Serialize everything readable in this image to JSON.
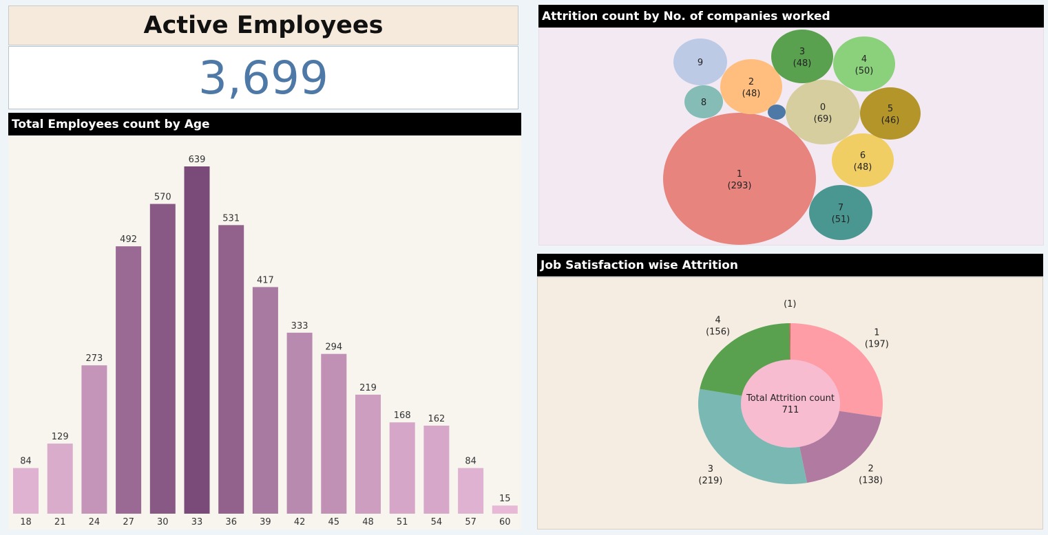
{
  "kpi": {
    "title": "Active Employees",
    "value": "3,699",
    "color": "#4e79a7"
  },
  "panels": {
    "bar_title": "Total Employees count by Age",
    "bubble_title": "Attrition count by No. of companies worked",
    "donut_title": "Job Satisfaction wise Attrition"
  },
  "chart_data": [
    {
      "type": "bar",
      "title": "Total Employees count by Age",
      "categories": [
        "18",
        "21",
        "24",
        "27",
        "30",
        "33",
        "36",
        "39",
        "42",
        "45",
        "48",
        "51",
        "54",
        "57",
        "60"
      ],
      "values": [
        84,
        129,
        273,
        492,
        570,
        639,
        531,
        417,
        333,
        294,
        219,
        168,
        162,
        84,
        15
      ],
      "ylim": [
        0,
        639
      ],
      "data_labels": true,
      "color_low": "#e8bad8",
      "color_high": "#7a4a78"
    },
    {
      "type": "bubble",
      "title": "Attrition count by No. of companies worked",
      "items": [
        {
          "label": "1",
          "value": 293,
          "show_value": true,
          "color": "#e8847e"
        },
        {
          "label": "0",
          "value": 69,
          "show_value": true,
          "color": "#d6ce9f"
        },
        {
          "label": "7",
          "value": 51,
          "show_value": true,
          "color": "#4a9691"
        },
        {
          "label": "4",
          "value": 50,
          "show_value": true,
          "color": "#8bd17c"
        },
        {
          "label": "2",
          "value": 48,
          "show_value": true,
          "color": "#ffbe7d"
        },
        {
          "label": "3",
          "value": 48,
          "show_value": true,
          "color": "#59a14f"
        },
        {
          "label": "6",
          "value": 48,
          "show_value": true,
          "color": "#f1ce63"
        },
        {
          "label": "5",
          "value": 46,
          "show_value": true,
          "color": "#b4952a"
        },
        {
          "label": "9",
          "value": null,
          "show_value": false,
          "color": "#bccae6"
        },
        {
          "label": "8",
          "value": null,
          "show_value": false,
          "color": "#86bcb6"
        },
        {
          "label": "",
          "value": null,
          "show_value": false,
          "color": "#4e79a7"
        }
      ]
    },
    {
      "type": "pie",
      "title": "Job Satisfaction wise Attrition",
      "center_label": "Total Attrition count",
      "center_value": "711",
      "slices": [
        {
          "label": "1",
          "value": 197,
          "color": "#ff9da7"
        },
        {
          "label": "2",
          "value": 138,
          "color": "#b07aa1"
        },
        {
          "label": "3",
          "value": 219,
          "color": "#7ab8b4"
        },
        {
          "label": "4",
          "value": 156,
          "color": "#59a14f"
        },
        {
          "label": "",
          "value": 1,
          "color": "#e15759"
        }
      ]
    }
  ]
}
